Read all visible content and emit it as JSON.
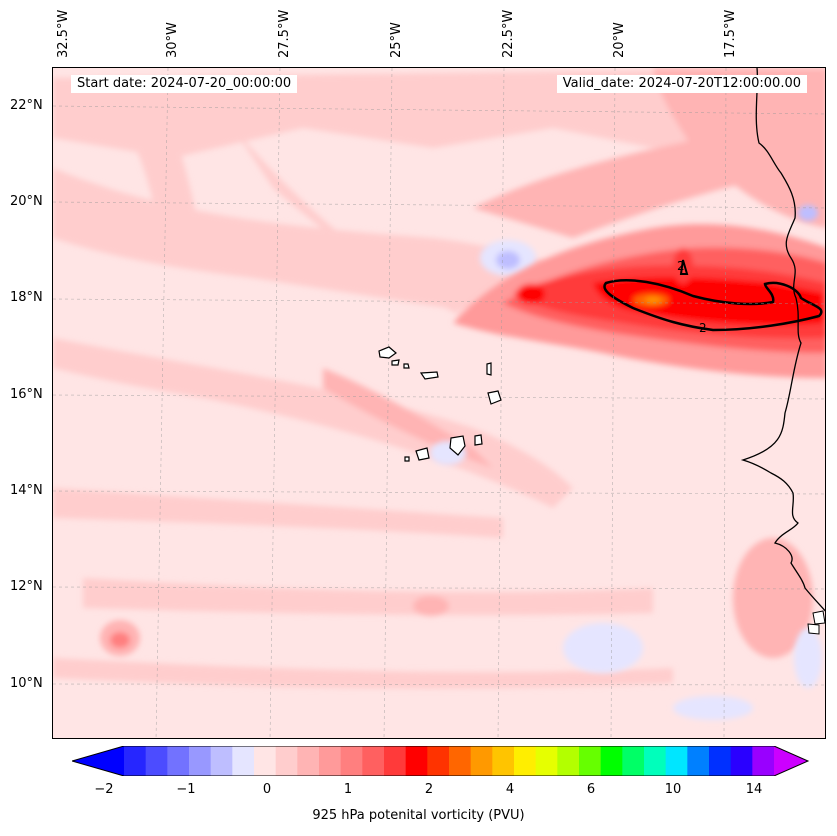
{
  "header": {
    "start_label": "Start date: 2024-07-20_00:00:00",
    "valid_label": "Valid_date: 2024-07-20T12:00:00.00"
  },
  "axes": {
    "lon_labels": [
      "32.5°W",
      "30°W",
      "27.5°W",
      "25°W",
      "22.5°W",
      "20°W",
      "17.5°W"
    ],
    "lat_labels": [
      "22°N",
      "20°N",
      "18°N",
      "16°N",
      "14°N",
      "12°N",
      "10°N"
    ]
  },
  "contour_labels": [
    "2",
    "2"
  ],
  "colorbar": {
    "title": "925 hPa potenital vorticity (PVU)",
    "tick_labels": [
      "−2",
      "−1",
      "0",
      "1",
      "2",
      "4",
      "6",
      "10",
      "14"
    ],
    "colors": [
      "#0000ff",
      "#2626ff",
      "#4c4cff",
      "#7272ff",
      "#9898ff",
      "#bebeff",
      "#e5e5ff",
      "#ffe5e5",
      "#ffcdcd",
      "#ffb4b4",
      "#ff9a9a",
      "#ff7f7f",
      "#ff6060",
      "#ff3a3a",
      "#ff0000",
      "#ff3300",
      "#ff6600",
      "#ff9900",
      "#ffc400",
      "#ffee00",
      "#e6ff00",
      "#b3ff00",
      "#66ff00",
      "#00ff00",
      "#00ff66",
      "#00ffbb",
      "#00e6ff",
      "#0080ff",
      "#0030ff",
      "#2a00ff",
      "#9900ff",
      "#cc00ff"
    ]
  }
}
